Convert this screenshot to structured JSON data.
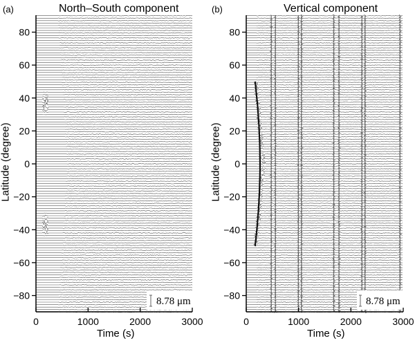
{
  "chart_data": [
    {
      "type": "line",
      "panel_label": "(a)",
      "title": "North–South component",
      "xlabel": "Time (s)",
      "ylabel": "Latitude (degree)",
      "xlim": [
        0,
        3000
      ],
      "ylim": [
        -90,
        90
      ],
      "xticks": [
        0,
        1000,
        2000,
        3000
      ],
      "yticks": [
        80,
        60,
        40,
        20,
        0,
        -20,
        -40,
        -60,
        -80
      ],
      "grid": false,
      "description": "Seismogram record section: one trace per latitude (approx 1 degree spacing, -90 to 90). Strong arrivals near ~180 s at latitudes +37 and -37, with X-shaped propagating phases.",
      "source_latitudes": [
        37,
        -37
      ],
      "source_time_s": 180,
      "scale_bar": {
        "value": 8.78,
        "unit": "μm",
        "label": "8.78 μm"
      }
    },
    {
      "type": "line",
      "panel_label": "(b)",
      "title": "Vertical component",
      "xlabel": "Time (s)",
      "ylabel": "Latitude (degree)",
      "xlim": [
        0,
        3000
      ],
      "ylim": [
        -90,
        90
      ],
      "xticks": [
        0,
        1000,
        2000,
        3000
      ],
      "yticks": [
        80,
        60,
        40,
        20,
        0,
        -20,
        -40,
        -60,
        -80
      ],
      "grid": false,
      "description": "Seismogram record section of vertical component: strong curved arrival between latitudes +50 and -50 near 180-350 s, plus near-vertical bands of coherent energy across all latitudes.",
      "vertical_band_times_s": [
        480,
        560,
        1000,
        1060,
        1680,
        1780,
        2220,
        2280,
        2950
      ],
      "scale_bar": {
        "value": 8.78,
        "unit": "μm",
        "label": "8.78 μm"
      }
    }
  ],
  "panels": {
    "a": {
      "label": "(a)",
      "title": "North–South component",
      "xlabel": "Time (s)",
      "ylabel": "Latitude (degree)",
      "scale": "8.78 μm"
    },
    "b": {
      "label": "(b)",
      "title": "Vertical component",
      "xlabel": "Time (s)",
      "ylabel": "Latitude (degree)",
      "scale": "8.78 μm"
    }
  },
  "axis": {
    "xticks": [
      "0",
      "1000",
      "2000",
      "3000"
    ],
    "yticks": [
      "80",
      "60",
      "40",
      "20",
      "0",
      "−20",
      "−40",
      "−60",
      "−80"
    ]
  }
}
